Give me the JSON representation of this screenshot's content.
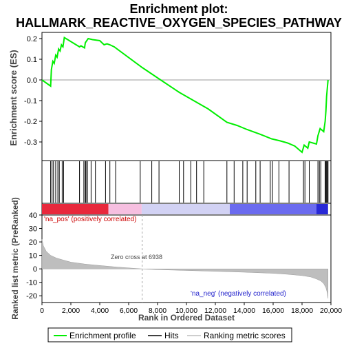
{
  "chart_data": {
    "type": "line",
    "title_line1": "Enrichment plot:",
    "title_line2": "HALLMARK_REACTIVE_OXYGEN_SPECIES_PATHWAY",
    "es_panel": {
      "ylabel": "Enrichment score (ES)",
      "ylim": [
        -0.39,
        0.23
      ],
      "yticks": [
        0.2,
        0.1,
        0.0,
        -0.1,
        -0.2,
        -0.3
      ],
      "ytick_labels": [
        "0.2",
        "0.1",
        "0.0",
        "-0.1",
        "-0.2",
        "-0.3"
      ],
      "line_color": "#00ee00",
      "points": [
        [
          0,
          0.0
        ],
        [
          600,
          -0.03
        ],
        [
          650,
          0.05
        ],
        [
          750,
          0.09
        ],
        [
          850,
          0.08
        ],
        [
          950,
          0.12
        ],
        [
          1050,
          0.11
        ],
        [
          1150,
          0.15
        ],
        [
          1250,
          0.14
        ],
        [
          1350,
          0.17
        ],
        [
          1450,
          0.16
        ],
        [
          1550,
          0.205
        ],
        [
          2600,
          0.16
        ],
        [
          2700,
          0.165
        ],
        [
          2950,
          0.155
        ],
        [
          3000,
          0.18
        ],
        [
          3100,
          0.19
        ],
        [
          3200,
          0.2
        ],
        [
          3500,
          0.195
        ],
        [
          4000,
          0.19
        ],
        [
          4300,
          0.17
        ],
        [
          4500,
          0.175
        ],
        [
          4700,
          0.17
        ],
        [
          5000,
          0.16
        ],
        [
          6938,
          0.06
        ],
        [
          8000,
          0.01
        ],
        [
          9500,
          -0.06
        ],
        [
          10500,
          -0.1
        ],
        [
          11500,
          -0.14
        ],
        [
          12800,
          -0.205
        ],
        [
          13500,
          -0.22
        ],
        [
          14200,
          -0.24
        ],
        [
          15000,
          -0.26
        ],
        [
          15900,
          -0.285
        ],
        [
          16500,
          -0.295
        ],
        [
          17000,
          -0.305
        ],
        [
          17500,
          -0.32
        ],
        [
          18000,
          -0.35
        ],
        [
          18150,
          -0.315
        ],
        [
          18400,
          -0.33
        ],
        [
          18500,
          -0.3
        ],
        [
          19000,
          -0.31
        ],
        [
          19100,
          -0.27
        ],
        [
          19250,
          -0.235
        ],
        [
          19500,
          -0.25
        ],
        [
          19600,
          -0.2
        ],
        [
          19650,
          -0.15
        ],
        [
          19700,
          -0.08
        ],
        [
          19800,
          0.0
        ]
      ]
    },
    "hits": {
      "positions": [
        600,
        700,
        800,
        950,
        1100,
        1200,
        1400,
        1500,
        2600,
        2900,
        3000,
        3050,
        3150,
        3400,
        3700,
        4400,
        4700,
        5100,
        6800,
        7600,
        8100,
        9500,
        9800,
        10300,
        10700,
        11200,
        12800,
        13300,
        13900,
        14200,
        14800,
        15100,
        15800,
        15950,
        16400,
        17100,
        18100,
        18200,
        18500,
        19100,
        19200,
        19300,
        19600,
        19650,
        19700,
        19750,
        19800
      ]
    },
    "metric_panel": {
      "ylabel": "Ranked list metric (PreRanked)",
      "ylim": [
        -25,
        40
      ],
      "yticks": [
        40,
        30,
        20,
        10,
        0,
        -10,
        -20
      ],
      "ytick_labels": [
        "40",
        "30",
        "20",
        "10",
        "0",
        "-10",
        "-20"
      ],
      "pos_label": "'na_pos' (positively correlated)",
      "neg_label": "'na_neg' (negatively correlated)",
      "zero_cross_label": "Zero cross at 6938",
      "zero_cross": 6938,
      "fill_color": "#bebebe",
      "profile": [
        [
          0,
          22
        ],
        [
          100,
          17
        ],
        [
          300,
          13
        ],
        [
          600,
          10
        ],
        [
          1000,
          8
        ],
        [
          1500,
          6.5
        ],
        [
          2000,
          5
        ],
        [
          3000,
          3.5
        ],
        [
          4000,
          2.5
        ],
        [
          5000,
          1.5
        ],
        [
          6000,
          0.7
        ],
        [
          6938,
          0
        ],
        [
          8000,
          -0.6
        ],
        [
          10000,
          -1.2
        ],
        [
          12000,
          -1.8
        ],
        [
          14000,
          -2.5
        ],
        [
          16000,
          -3.3
        ],
        [
          17000,
          -4
        ],
        [
          18000,
          -5
        ],
        [
          18600,
          -6
        ],
        [
          19000,
          -7.5
        ],
        [
          19300,
          -9
        ],
        [
          19500,
          -11
        ],
        [
          19650,
          -14
        ],
        [
          19750,
          -18
        ],
        [
          19800,
          -22
        ]
      ]
    },
    "x_axis": {
      "label": "Rank in Ordered Dataset",
      "xlim": [
        0,
        20000
      ],
      "xticks": [
        0,
        2000,
        4000,
        6000,
        8000,
        10000,
        12000,
        14000,
        16000,
        18000,
        20000
      ],
      "xtick_labels": [
        "0",
        "2,000",
        "4,000",
        "6,000",
        "8,000",
        "10,000",
        "12,000",
        "14,000",
        "16,000",
        "18,000",
        "20,000"
      ]
    },
    "legend": {
      "placement": "bottom",
      "items": [
        {
          "label": "Enrichment profile",
          "color": "#00ee00"
        },
        {
          "label": "Hits",
          "color": "#000000"
        },
        {
          "label": "Ranking metric scores",
          "color": "#bebebe"
        }
      ]
    },
    "colorbar": {
      "segments": [
        {
          "from": 0,
          "to": 4600,
          "color": "#e8283c"
        },
        {
          "from": 4600,
          "to": 6900,
          "color": "#f6bfe0"
        },
        {
          "from": 6900,
          "to": 13000,
          "color": "#d2d2f4"
        },
        {
          "from": 13000,
          "to": 19000,
          "color": "#6b6bef"
        },
        {
          "from": 19000,
          "to": 19800,
          "color": "#2828d6"
        }
      ]
    }
  }
}
